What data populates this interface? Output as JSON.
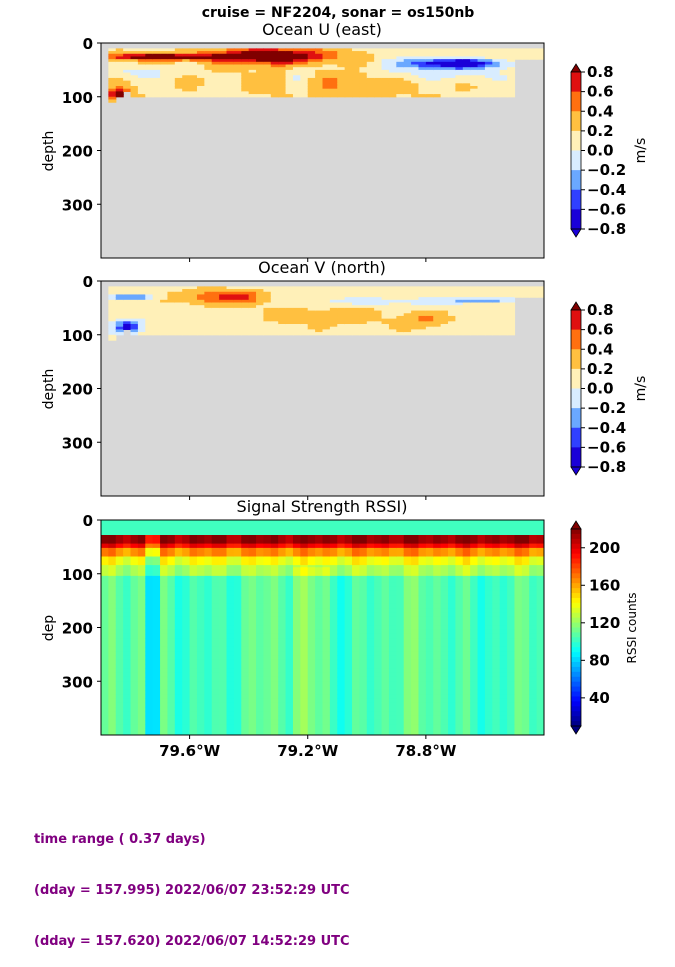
{
  "suptitle": "cruise = NF2204,  sonar = os150nb",
  "footer": {
    "line1": "time range ( 0.37 days)",
    "line2": "(dday = 157.995) 2022/06/07 23:52:29 UTC",
    "line3": "(dday = 157.620) 2022/06/07 14:52:29 UTC"
  },
  "chart_data": [
    {
      "type": "heatmap",
      "title": "Ocean U (east)",
      "ylabel": "depth",
      "colorbar_label": "m/s",
      "colorbar_ticks": [
        "0.8",
        "0.6",
        "0.4",
        "0.2",
        "0.0",
        "−0.2",
        "−0.4",
        "−0.6",
        "−0.8"
      ],
      "colorbar_levels": [
        -0.8,
        0.8
      ],
      "y_ticks": [
        "0",
        "100",
        "200",
        "300"
      ],
      "ylim": [
        400,
        0
      ],
      "xlim": [
        -79.9,
        -78.4
      ],
      "no_data_color": "#d8d8d8"
    },
    {
      "type": "heatmap",
      "title": "Ocean V (north)",
      "ylabel": "depth",
      "colorbar_label": "m/s",
      "colorbar_ticks": [
        "0.8",
        "0.6",
        "0.4",
        "0.2",
        "0.0",
        "−0.2",
        "−0.4",
        "−0.6",
        "−0.8"
      ],
      "colorbar_levels": [
        -0.8,
        0.8
      ],
      "y_ticks": [
        "0",
        "100",
        "200",
        "300"
      ],
      "ylim": [
        400,
        0
      ],
      "xlim": [
        -79.9,
        -78.4
      ],
      "no_data_color": "#d8d8d8"
    },
    {
      "type": "heatmap",
      "title": "Signal Strength RSSI)",
      "ylabel": "dep",
      "colorbar_label": "RSSI counts",
      "colorbar_ticks": [
        "200",
        "160",
        "120",
        "80",
        "40"
      ],
      "colorbar_levels": [
        10,
        220
      ],
      "y_ticks": [
        "0",
        "100",
        "200",
        "300"
      ],
      "x_ticks": [
        "79.6°W",
        "79.2°W",
        "78.8°W"
      ],
      "x_tick_values": [
        -79.6,
        -79.2,
        -78.8
      ],
      "ylim": [
        400,
        0
      ],
      "xlim": [
        -79.9,
        -78.4
      ]
    }
  ]
}
